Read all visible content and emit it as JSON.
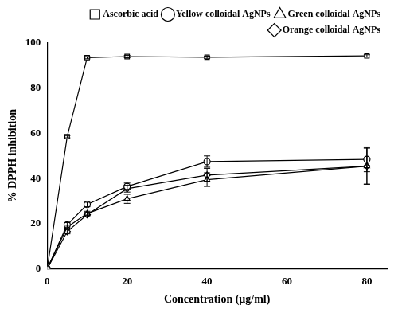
{
  "chart_data": {
    "type": "line",
    "x_label": "Concentration (μg/ml)",
    "y_label": "% DPPH inhibition",
    "x": [
      0,
      5,
      10,
      20,
      40,
      80
    ],
    "series": [
      {
        "name": "Ascorbic acid",
        "color": "#000000",
        "marker": "square",
        "values": [
          0,
          58.5,
          93.5,
          94,
          93.7,
          94.3
        ],
        "errors": [
          0,
          0.5,
          0.5,
          0.5,
          0.5,
          0.5
        ]
      },
      {
        "name": "Yellow colloidal AgNPs",
        "color": "#000000",
        "marker": "circle",
        "values": [
          0,
          19.5,
          28.5,
          36.5,
          47.5,
          48.5
        ],
        "errors": [
          0,
          1,
          1,
          1.5,
          2.5,
          5.5
        ]
      },
      {
        "name": "Green colloidal AgNPs",
        "color": "#000000",
        "marker": "triangle",
        "values": [
          0,
          18.5,
          24.5,
          31,
          39.5,
          45.5
        ],
        "errors": [
          0,
          0.8,
          1,
          2,
          3,
          8
        ]
      },
      {
        "name": "Orange colloidal AgNPs",
        "color": "#000000",
        "marker": "diamond",
        "values": [
          0,
          16.5,
          24,
          35.5,
          41.5,
          45.5
        ],
        "errors": [
          0,
          1,
          1,
          1.5,
          3,
          8
        ]
      }
    ],
    "xlim": [
      0,
      85
    ],
    "xticks": [
      0,
      20,
      40,
      60,
      80
    ],
    "ylim": [
      0,
      100
    ],
    "yticks": [
      0,
      20,
      40,
      60,
      80,
      100
    ],
    "grid": false,
    "legend": "top right"
  }
}
